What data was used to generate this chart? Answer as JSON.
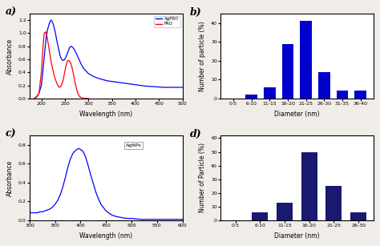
{
  "panel_a": {
    "title": "a)",
    "xlabel": "Wavelength (nm)",
    "ylabel": "Absorbance",
    "xlim": [
      175,
      500
    ],
    "ylim": [
      0.0,
      1.3
    ],
    "xticks": [
      200,
      250,
      300,
      350,
      400,
      450,
      500
    ],
    "yticks": [
      0.0,
      0.2,
      0.4,
      0.6,
      0.8,
      1.0,
      1.2
    ],
    "agpro_color": "#0000FF",
    "pro_color": "#FF0000",
    "legend_labels": [
      "AgPRO",
      "PRO"
    ],
    "agpro_x": [
      185,
      190,
      195,
      200,
      203,
      207,
      210,
      213,
      217,
      220,
      223,
      226,
      230,
      233,
      237,
      240,
      243,
      247,
      250,
      253,
      257,
      260,
      263,
      267,
      270,
      275,
      280,
      285,
      290,
      300,
      310,
      320,
      330,
      340,
      350,
      360,
      370,
      380,
      390,
      400,
      420,
      440,
      460,
      480,
      500
    ],
    "agpro_y": [
      0.0,
      0.03,
      0.08,
      0.2,
      0.4,
      0.7,
      0.92,
      1.05,
      1.15,
      1.2,
      1.18,
      1.12,
      1.0,
      0.88,
      0.75,
      0.65,
      0.6,
      0.58,
      0.6,
      0.65,
      0.72,
      0.78,
      0.8,
      0.78,
      0.75,
      0.68,
      0.6,
      0.52,
      0.46,
      0.38,
      0.34,
      0.31,
      0.29,
      0.27,
      0.26,
      0.25,
      0.24,
      0.23,
      0.22,
      0.21,
      0.19,
      0.18,
      0.17,
      0.17,
      0.17
    ],
    "pro_x": [
      185,
      190,
      195,
      200,
      203,
      206,
      209,
      212,
      215,
      218,
      221,
      225,
      228,
      232,
      235,
      238,
      241,
      244,
      247,
      250,
      253,
      256,
      259,
      262,
      265,
      268,
      271,
      274,
      277,
      280,
      283,
      286,
      290,
      295,
      300
    ],
    "pro_y": [
      0.0,
      0.02,
      0.08,
      0.4,
      0.75,
      1.0,
      1.02,
      0.95,
      0.82,
      0.68,
      0.55,
      0.42,
      0.33,
      0.25,
      0.2,
      0.17,
      0.18,
      0.22,
      0.3,
      0.42,
      0.52,
      0.58,
      0.58,
      0.55,
      0.48,
      0.38,
      0.27,
      0.17,
      0.09,
      0.04,
      0.02,
      0.01,
      0.0,
      0.0,
      0.0
    ]
  },
  "panel_b": {
    "title": "b)",
    "xlabel": "Diameter (nm)",
    "ylabel": "Number of particle (%)",
    "categories": [
      "0-5",
      "6-10",
      "11-15",
      "16-20",
      "21-25",
      "26-30",
      "31-35",
      "36-40"
    ],
    "values": [
      0,
      2,
      6,
      29,
      41,
      14,
      4,
      4
    ],
    "bar_color": "#0000CD",
    "ylim": [
      0,
      45
    ],
    "yticks": [
      0,
      10,
      20,
      30,
      40
    ]
  },
  "panel_c": {
    "title": "c)",
    "xlabel": "Wavelength (nm)",
    "ylabel": "Absorbance",
    "xlim": [
      300,
      600
    ],
    "ylim": [
      0.0,
      0.9
    ],
    "xticks": [
      300,
      350,
      400,
      450,
      500,
      550,
      600
    ],
    "yticks": [
      0.0,
      0.2,
      0.4,
      0.6,
      0.8
    ],
    "line_color": "#0000FF",
    "legend_label": "AgNPs",
    "x": [
      300,
      310,
      315,
      320,
      325,
      330,
      335,
      340,
      345,
      350,
      355,
      360,
      365,
      370,
      375,
      380,
      385,
      390,
      395,
      398,
      400,
      403,
      406,
      410,
      415,
      420,
      425,
      430,
      435,
      440,
      450,
      460,
      470,
      480,
      490,
      500,
      520,
      540,
      560,
      580,
      600
    ],
    "y": [
      0.08,
      0.08,
      0.08,
      0.09,
      0.09,
      0.1,
      0.11,
      0.12,
      0.14,
      0.17,
      0.21,
      0.27,
      0.35,
      0.45,
      0.56,
      0.65,
      0.71,
      0.74,
      0.76,
      0.76,
      0.75,
      0.74,
      0.72,
      0.67,
      0.58,
      0.48,
      0.39,
      0.3,
      0.23,
      0.17,
      0.1,
      0.06,
      0.04,
      0.03,
      0.02,
      0.02,
      0.01,
      0.01,
      0.01,
      0.01,
      0.01
    ]
  },
  "panel_d": {
    "title": "d)",
    "xlabel": "Diameter (nm)",
    "ylabel": "Number of Particle (%)",
    "categories": [
      "0-5",
      "6-10",
      "11-15",
      "16-20",
      "21-25",
      "26-30"
    ],
    "values": [
      0,
      6,
      13,
      50,
      25,
      6
    ],
    "bar_color": "#191970",
    "ylim": [
      0,
      62
    ],
    "yticks": [
      0,
      10,
      20,
      30,
      40,
      50,
      60
    ]
  },
  "bg_color": "#f0ece8",
  "axes_bg": "#ffffff"
}
